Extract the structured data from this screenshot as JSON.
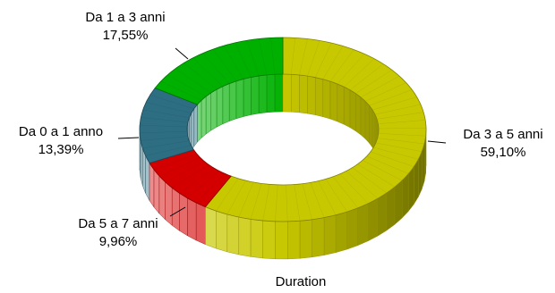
{
  "chart_data": {
    "type": "pie",
    "variant": "3d-donut",
    "xlabel": "Duration",
    "slices": [
      {
        "label": "Da 3 a 5 anni",
        "pct_text": "59,10%",
        "value": 59.1,
        "color": "#c8c800"
      },
      {
        "label": "Da 5 a 7 anni",
        "pct_text": "9,96%",
        "value": 9.96,
        "color": "#d40000"
      },
      {
        "label": "Da 0 a 1 anno",
        "pct_text": "13,39%",
        "value": 13.39,
        "color": "#2e6e82"
      },
      {
        "label": "Da 1 a 3 anni",
        "pct_text": "17,55%",
        "value": 17.55,
        "color": "#00b000"
      }
    ]
  }
}
